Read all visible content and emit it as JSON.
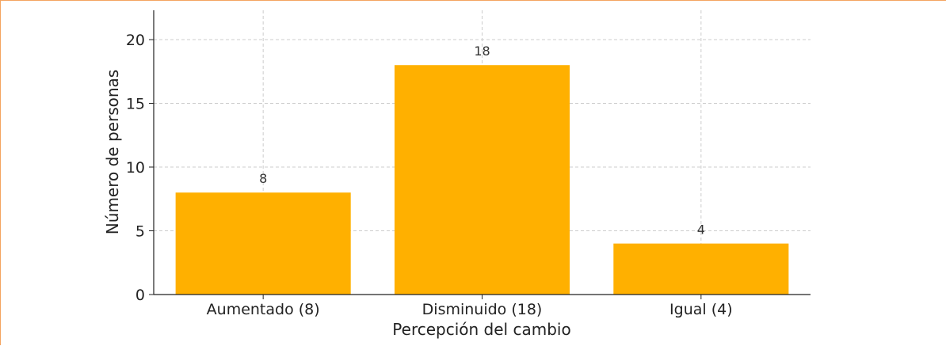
{
  "chart_data": {
    "type": "bar",
    "categories": [
      "Aumentado (8)",
      "Disminuido (18)",
      "Igual (4)"
    ],
    "values": [
      8,
      18,
      4
    ],
    "data_labels": [
      "8",
      "18",
      "4"
    ],
    "title": "",
    "xlabel": "Percepción del cambio",
    "ylabel": "Número de personas",
    "ylim": [
      0,
      22.3
    ],
    "yticks": [
      0,
      5,
      10,
      15,
      20
    ],
    "grid": true,
    "bar_color": "#FFB000",
    "legend": "none"
  }
}
